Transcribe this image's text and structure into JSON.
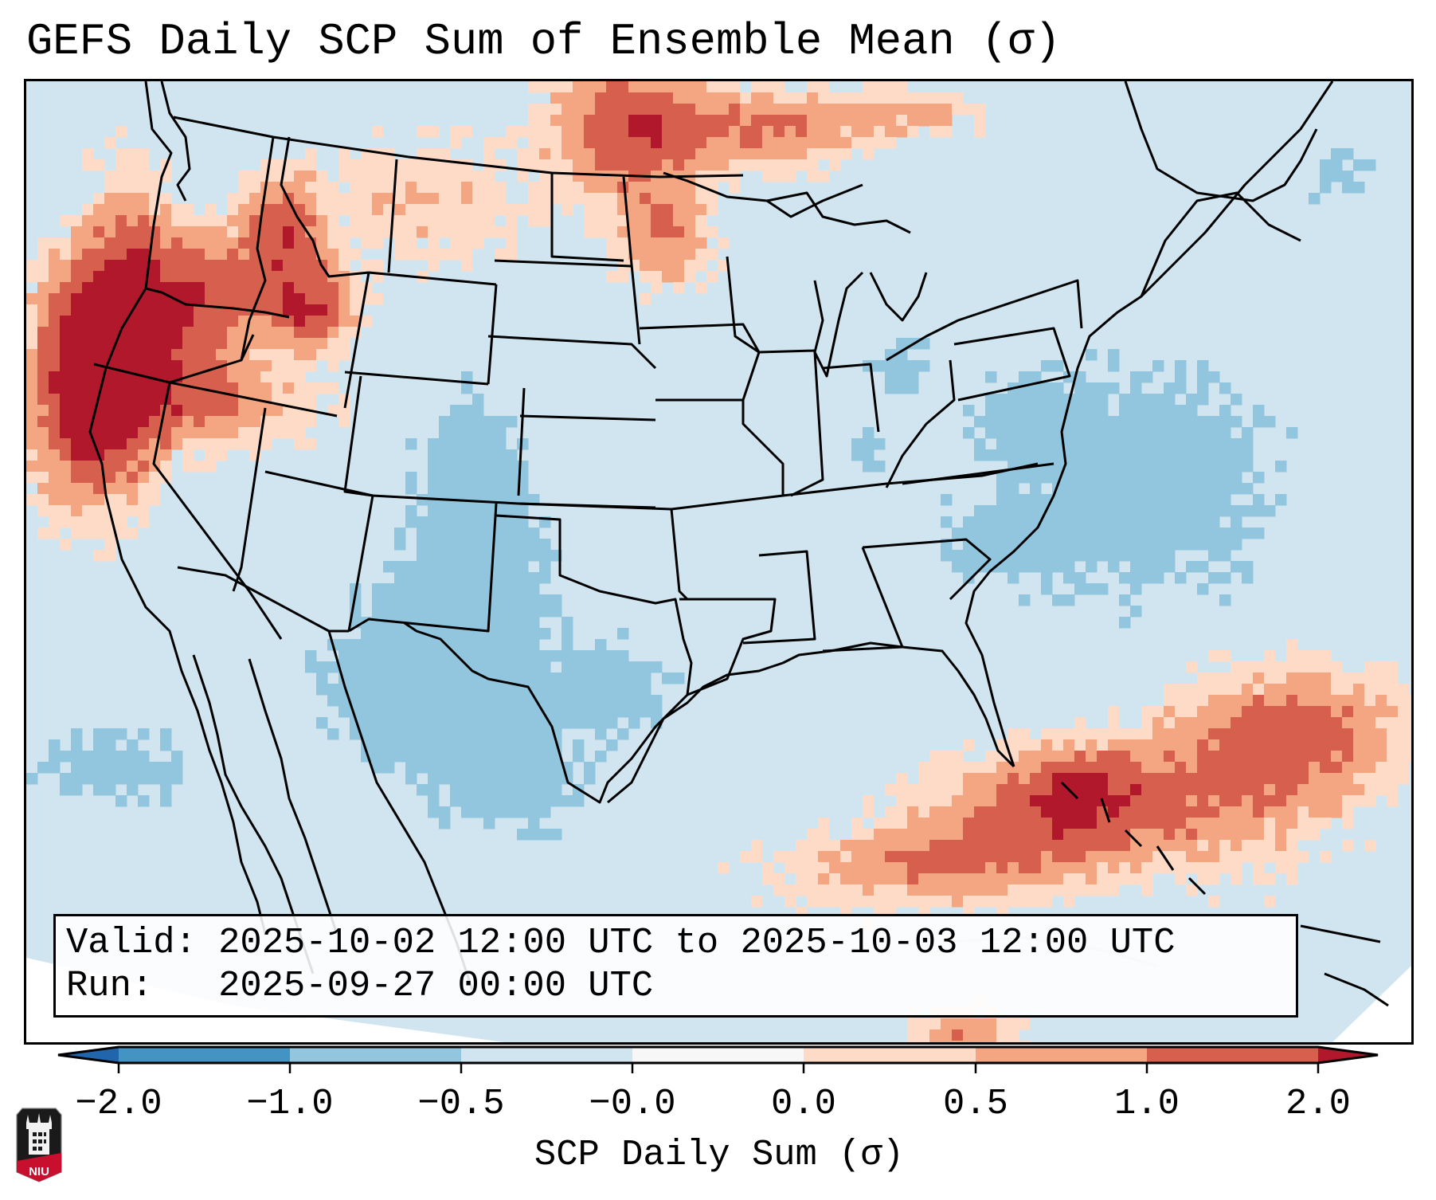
{
  "title": "GEFS Daily SCP Sum of Ensemble Mean (σ)",
  "info": {
    "valid_line": "Valid: 2025-10-02 12:00 UTC to 2025-10-03 12:00 UTC",
    "run_line": "Run:   2025-09-27 00:00 UTC"
  },
  "logo": {
    "text": "NIU",
    "name": "Northern Illinois University"
  },
  "chart_data": {
    "type": "heatmap",
    "title": "GEFS Daily SCP Sum of Ensemble Mean (σ)",
    "xlabel": "SCP Daily Sum (σ)",
    "colorbar": {
      "label": "SCP Daily Sum (σ)",
      "boundaries": [
        -2.0,
        -1.0,
        -0.5,
        -0.0,
        0.0,
        0.5,
        1.0,
        2.0
      ],
      "tick_labels": [
        "−2.0",
        "−1.0",
        "−0.5",
        "−0.0",
        "0.0",
        "0.5",
        "1.0",
        "2.0"
      ],
      "extend": "both",
      "colors": {
        "under": "#2166ac",
        "bins": [
          "#4393c3",
          "#92c5de",
          "#d1e5f0",
          "#f7f7f7",
          "#fddbc7",
          "#f4a582",
          "#d6604d"
        ],
        "over": "#b2182b"
      },
      "orientation": "horizontal",
      "placement": "bottom"
    },
    "region": "Contiguous United States and adjacent waters",
    "field_description": "Grid of SCP anomaly bins; background over most of domain is bin 2 (-0.5 to -0.0)",
    "bin_legend": {
      "0": "-2.0 to -1.0",
      "1": "-1.0 to -0.5",
      "2": "-0.5 to -0.0",
      "3": "-0.0 to 0.0",
      "4": "0.0 to 0.5",
      "5": "0.5 to 1.0",
      "6": "1.0 to 2.0",
      "7": "> 2.0"
    },
    "anomaly_regions": [
      {
        "name": "Northern California coast / offshore",
        "max_bin": 7,
        "typical_bin": 6
      },
      {
        "name": "Oregon / Idaho / Washington interior",
        "max_bin": 7,
        "typical_bin": 5
      },
      {
        "name": "Montana",
        "max_bin": 5,
        "typical_bin": 4
      },
      {
        "name": "North Dakota / southern Canada prairies",
        "max_bin": 7,
        "typical_bin": 6
      },
      {
        "name": "Eastern Gulf of Mexico",
        "max_bin": 6,
        "typical_bin": 5
      },
      {
        "name": "Florida / Bahamas / western Atlantic",
        "max_bin": 6,
        "typical_bin": 5
      },
      {
        "name": "Colorado / New Mexico / west Texas",
        "min_bin": 1,
        "typical_bin": 1
      },
      {
        "name": "Arizona / Sonora",
        "min_bin": 1,
        "typical_bin": 1
      },
      {
        "name": "Mid-Atlantic / Pennsylvania / offshore Atlantic",
        "min_bin": 1,
        "typical_bin": 1
      },
      {
        "name": "Eastern Pacific off Baja",
        "min_bin": 1,
        "typical_bin": 1
      }
    ]
  }
}
